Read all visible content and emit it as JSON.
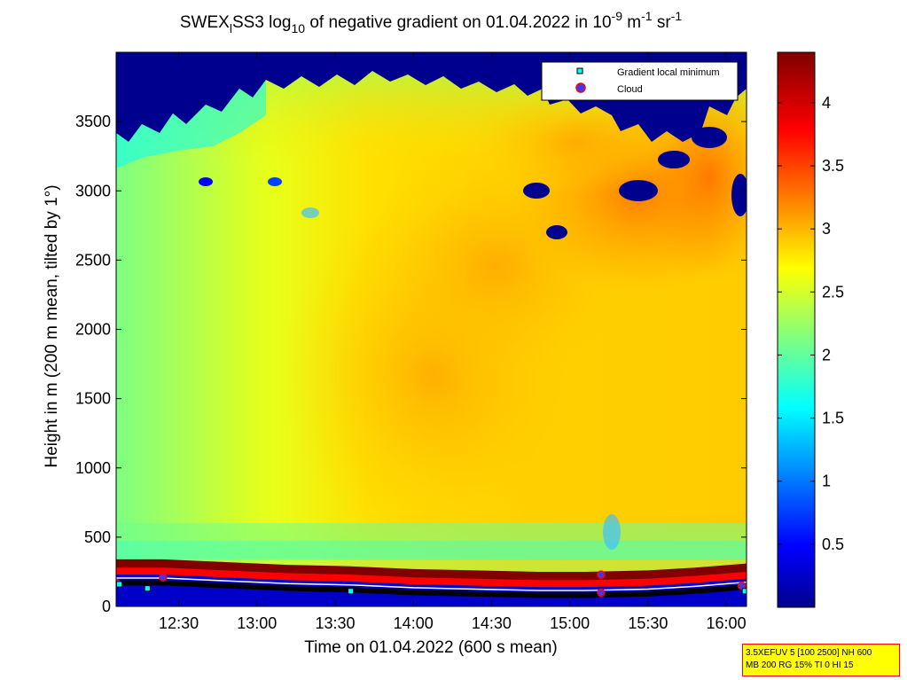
{
  "title": {
    "prefix": "SWEX",
    "sub1": "l",
    "mid": "SS3 log",
    "sub2": "10",
    "rest": " of negative gradient on 01.04.2022 in 10",
    "sup1": "-9",
    "unit1": " m",
    "sup2": "-1",
    "unit2": " sr",
    "sup3": "-1"
  },
  "info_box": {
    "line1": "3.5XEFUV 5 [100 2500] NH 600",
    "line2": "MB 200 RG 15% TI 0 HI 15"
  },
  "colors": {
    "cloud_marker": "#ff0000",
    "cloud_marker_fill": "#3a3aff",
    "gradient_marker": "#00ffff",
    "info_box_bg": "#ffff00",
    "info_box_border": "#ff0000"
  },
  "chart_data": {
    "type": "heatmap",
    "colormap": "jet",
    "xlabel": "Time on 01.04.2022 (600 s mean)",
    "ylabel": "Height in m (200 m mean, tilted by 1°)",
    "x_ticks": [
      "12:30",
      "13:00",
      "13:30",
      "14:00",
      "14:30",
      "15:00",
      "15:30",
      "16:00"
    ],
    "x_tick_hours": [
      12.5,
      13.0,
      13.5,
      14.0,
      14.5,
      15.0,
      15.5,
      16.0
    ],
    "xlim": [
      12.1,
      16.13
    ],
    "y_ticks": [
      0,
      500,
      1000,
      1500,
      2000,
      2500,
      3000,
      3500
    ],
    "ylim": [
      0,
      4000
    ],
    "colorbar_ticks": [
      0.5,
      1,
      1.5,
      2,
      2.5,
      3,
      3.5,
      4
    ],
    "clim": [
      0,
      4.4
    ],
    "legend": {
      "position": "top-right",
      "entries": [
        "Gradient local minimum",
        "Cloud"
      ]
    },
    "surface_layer": {
      "time": [
        12.1,
        12.4,
        12.8,
        13.2,
        13.6,
        14.0,
        14.4,
        14.8,
        15.1,
        15.5,
        15.8,
        16.13
      ],
      "top_m": [
        340,
        340,
        320,
        300,
        290,
        270,
        260,
        250,
        250,
        260,
        280,
        310
      ]
    },
    "cloud_points": [
      {
        "time": 12.1,
        "height": 170
      },
      {
        "time": 12.4,
        "height": 210
      },
      {
        "time": 15.2,
        "height": 230
      },
      {
        "time": 15.2,
        "height": 100
      },
      {
        "time": 16.1,
        "height": 150
      }
    ],
    "gradient_minimum_points": [
      {
        "time": 12.12,
        "height": 160
      },
      {
        "time": 12.3,
        "height": 130
      },
      {
        "time": 13.6,
        "height": 110
      },
      {
        "time": 16.12,
        "height": 110
      }
    ]
  }
}
